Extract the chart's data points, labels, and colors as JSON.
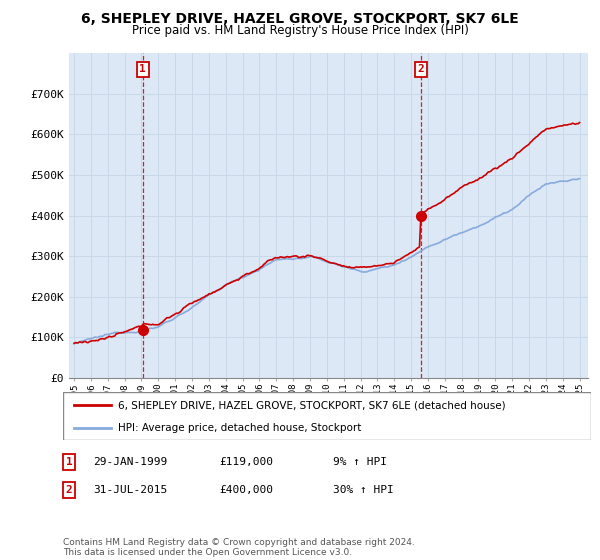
{
  "title": "6, SHEPLEY DRIVE, HAZEL GROVE, STOCKPORT, SK7 6LE",
  "subtitle": "Price paid vs. HM Land Registry's House Price Index (HPI)",
  "ylim": [
    0,
    800000
  ],
  "yticks": [
    0,
    100000,
    200000,
    300000,
    400000,
    500000,
    600000,
    700000
  ],
  "ytick_labels": [
    "£0",
    "£100K",
    "£200K",
    "£300K",
    "£400K",
    "£500K",
    "£600K",
    "£700K"
  ],
  "house_color": "#cc0000",
  "hpi_color": "#88aadd",
  "plot_bg_color": "#dce8f5",
  "marker_color": "#cc0000",
  "purchase1_year": 1999.08,
  "purchase1_price": 119000,
  "purchase2_year": 2015.58,
  "purchase2_price": 400000,
  "legend_house": "6, SHEPLEY DRIVE, HAZEL GROVE, STOCKPORT, SK7 6LE (detached house)",
  "legend_hpi": "HPI: Average price, detached house, Stockport",
  "note1_label": "1",
  "note1_date": "29-JAN-1999",
  "note1_price": "£119,000",
  "note1_hpi": "9% ↑ HPI",
  "note2_label": "2",
  "note2_date": "31-JUL-2015",
  "note2_price": "£400,000",
  "note2_hpi": "30% ↑ HPI",
  "footer": "Contains HM Land Registry data © Crown copyright and database right 2024.\nThis data is licensed under the Open Government Licence v3.0.",
  "background_color": "#ffffff",
  "grid_color": "#c8d8e8",
  "vline_color": "#cc0000"
}
